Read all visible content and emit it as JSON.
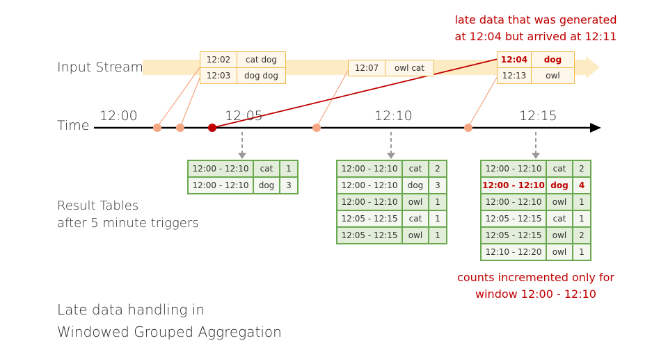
{
  "labels": {
    "input_stream": "Input Stream",
    "time": "Time",
    "result_tables_line1": "Result Tables",
    "result_tables_line2": "after 5 minute triggers",
    "caption_line1": "Late data handling in",
    "caption_line2": "Windowed Grouped Aggregation"
  },
  "annotations": {
    "late_line1": "late data that was generated",
    "late_line2": "at 12:04 but arrived at 12:11",
    "counts_line1": "counts incremented only for",
    "counts_line2": "window 12:00 - 12:10"
  },
  "time_ticks": [
    "12:00",
    "12:05",
    "12:10",
    "12:15"
  ],
  "events": [
    {
      "rows": [
        {
          "time": "12:02",
          "words": "cat dog"
        },
        {
          "time": "12:03",
          "words": "dog dog"
        }
      ]
    },
    {
      "rows": [
        {
          "time": "12:07",
          "words": "owl cat"
        }
      ]
    },
    {
      "rows": [
        {
          "time": "12:04",
          "words": "dog"
        },
        {
          "time": "12:13",
          "words": "owl"
        }
      ]
    }
  ],
  "result_tables": [
    {
      "rows": [
        {
          "window": "12:00 - 12:10",
          "word": "cat",
          "count": "1"
        },
        {
          "window": "12:00 - 12:10",
          "word": "dog",
          "count": "3"
        }
      ]
    },
    {
      "rows": [
        {
          "window": "12:00 - 12:10",
          "word": "cat",
          "count": "2"
        },
        {
          "window": "12:00 - 12:10",
          "word": "dog",
          "count": "3"
        },
        {
          "window": "12:00 - 12:10",
          "word": "owl",
          "count": "1"
        },
        {
          "window": "12:05 - 12:15",
          "word": "cat",
          "count": "1"
        },
        {
          "window": "12:05 - 12:15",
          "word": "owl",
          "count": "1"
        }
      ]
    },
    {
      "rows": [
        {
          "window": "12:00 - 12:10",
          "word": "cat",
          "count": "2"
        },
        {
          "window": "12:00 - 12:10",
          "word": "dog",
          "count": "4"
        },
        {
          "window": "12:00 - 12:10",
          "word": "owl",
          "count": "1"
        },
        {
          "window": "12:05 - 12:15",
          "word": "cat",
          "count": "1"
        },
        {
          "window": "12:05 - 12:15",
          "word": "owl",
          "count": "2"
        },
        {
          "window": "12:10 - 12:20",
          "word": "owl",
          "count": "1"
        }
      ]
    }
  ],
  "colors": {
    "stream_band": "#fdebc4",
    "event_border": "#f2b84b",
    "event_dot": "#f4a582",
    "late_dot": "#c00000",
    "late_line": "#c00000",
    "table_border": "#6aa84f",
    "highlight_text": "#c00000"
  }
}
